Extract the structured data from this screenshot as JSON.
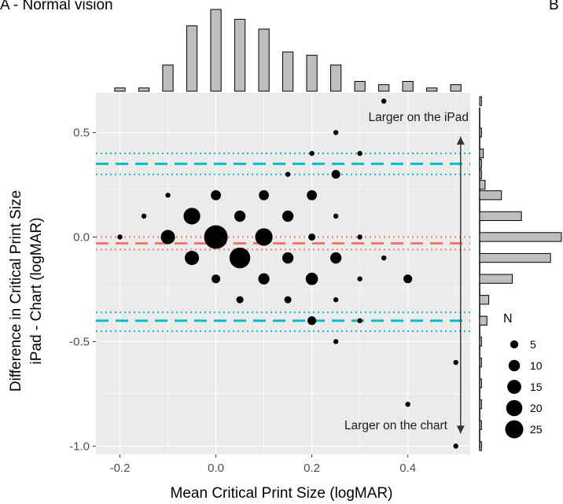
{
  "chart_data": {
    "type": "scatter",
    "panels": {
      "left_label": "A - Normal vision",
      "right_label": "B"
    },
    "xlabel": "Mean Critical Print Size (logMAR)",
    "ylabel": [
      "Difference in Critical Print Size",
      "iPad - Chart (logMAR)"
    ],
    "xlim": [
      -0.25,
      0.53
    ],
    "ylim": [
      -1.04,
      0.69
    ],
    "x_ticks": [
      {
        "value": -0.2,
        "label": "-0.2"
      },
      {
        "value": 0.0,
        "label": "0.0"
      },
      {
        "value": 0.2,
        "label": "0.2"
      },
      {
        "value": 0.4,
        "label": "0.4"
      }
    ],
    "y_ticks": [
      {
        "value": 0.5,
        "label": "0.5"
      },
      {
        "value": 0.0,
        "label": "0.0"
      },
      {
        "value": -0.5,
        "label": "-0.5"
      },
      {
        "value": -1.0,
        "label": "-1.0"
      }
    ],
    "grid": true,
    "points": [
      {
        "x": 0.35,
        "y": 0.65,
        "n": 1
      },
      {
        "x": 0.25,
        "y": 0.5,
        "n": 1
      },
      {
        "x": 0.2,
        "y": 0.4,
        "n": 1
      },
      {
        "x": 0.3,
        "y": 0.4,
        "n": 1
      },
      {
        "x": 0.15,
        "y": 0.3,
        "n": 1
      },
      {
        "x": 0.25,
        "y": 0.3,
        "n": 3
      },
      {
        "x": -0.1,
        "y": 0.2,
        "n": 1
      },
      {
        "x": 0.0,
        "y": 0.2,
        "n": 4
      },
      {
        "x": 0.1,
        "y": 0.2,
        "n": 4
      },
      {
        "x": 0.2,
        "y": 0.2,
        "n": 4
      },
      {
        "x": -0.15,
        "y": 0.1,
        "n": 1
      },
      {
        "x": -0.05,
        "y": 0.1,
        "n": 11
      },
      {
        "x": 0.05,
        "y": 0.1,
        "n": 5
      },
      {
        "x": 0.15,
        "y": 0.1,
        "n": 5
      },
      {
        "x": 0.25,
        "y": 0.1,
        "n": 1
      },
      {
        "x": -0.2,
        "y": 0.0,
        "n": 1
      },
      {
        "x": -0.1,
        "y": 0.0,
        "n": 8
      },
      {
        "x": 0.0,
        "y": 0.0,
        "n": 22
      },
      {
        "x": 0.1,
        "y": 0.0,
        "n": 12
      },
      {
        "x": 0.2,
        "y": 0.0,
        "n": 2
      },
      {
        "x": 0.3,
        "y": 0.0,
        "n": 1
      },
      {
        "x": -0.05,
        "y": -0.1,
        "n": 8
      },
      {
        "x": 0.05,
        "y": -0.1,
        "n": 17
      },
      {
        "x": 0.15,
        "y": -0.1,
        "n": 5
      },
      {
        "x": 0.25,
        "y": -0.1,
        "n": 5
      },
      {
        "x": 0.35,
        "y": -0.1,
        "n": 1
      },
      {
        "x": 0.0,
        "y": -0.2,
        "n": 3
      },
      {
        "x": 0.1,
        "y": -0.2,
        "n": 5
      },
      {
        "x": 0.2,
        "y": -0.2,
        "n": 6
      },
      {
        "x": 0.3,
        "y": -0.2,
        "n": 1
      },
      {
        "x": 0.4,
        "y": -0.2,
        "n": 3
      },
      {
        "x": 0.05,
        "y": -0.3,
        "n": 2
      },
      {
        "x": 0.15,
        "y": -0.3,
        "n": 2
      },
      {
        "x": 0.25,
        "y": -0.3,
        "n": 1
      },
      {
        "x": 0.2,
        "y": -0.4,
        "n": 3
      },
      {
        "x": 0.3,
        "y": -0.4,
        "n": 1
      },
      {
        "x": 0.25,
        "y": -0.5,
        "n": 1
      },
      {
        "x": 0.5,
        "y": -0.6,
        "n": 1
      },
      {
        "x": 0.4,
        "y": -0.8,
        "n": 1
      },
      {
        "x": 0.5,
        "y": -1.0,
        "n": 1
      }
    ],
    "reference_lines": [
      {
        "name": "mean",
        "y": -0.03,
        "style": "dashed",
        "color": "#F8766D"
      },
      {
        "name": "mean-ci-upper",
        "y": 0.0,
        "style": "dotted",
        "color": "#F8766D"
      },
      {
        "name": "mean-ci-lower",
        "y": -0.06,
        "style": "dotted",
        "color": "#F8766D"
      },
      {
        "name": "upper-loa",
        "y": 0.35,
        "style": "dashed",
        "color": "#00BFC4"
      },
      {
        "name": "upper-loa-ci-upper",
        "y": 0.4,
        "style": "dotted",
        "color": "#00BFC4"
      },
      {
        "name": "upper-loa-ci-lower",
        "y": 0.3,
        "style": "dotted",
        "color": "#00BFC4"
      },
      {
        "name": "lower-loa",
        "y": -0.4,
        "style": "dashed",
        "color": "#00BFC4"
      },
      {
        "name": "lower-loa-ci-upper",
        "y": -0.36,
        "style": "dotted",
        "color": "#00BFC4"
      },
      {
        "name": "lower-loa-ci-lower",
        "y": -0.45,
        "style": "dotted",
        "color": "#00BFC4"
      }
    ],
    "annotations": {
      "top": "Larger on the iPad",
      "bottom": "Larger on the chart",
      "arrow_x": 0.51,
      "arrow_from": 0.0,
      "arrow_to_top": 0.48,
      "arrow_to_bottom": -0.94
    },
    "x_histogram": {
      "bin_width": 0.025,
      "bins": [
        {
          "x": -0.2,
          "count": 1
        },
        {
          "x": -0.175,
          "count": 0
        },
        {
          "x": -0.15,
          "count": 1
        },
        {
          "x": -0.125,
          "count": 0
        },
        {
          "x": -0.1,
          "count": 8
        },
        {
          "x": -0.075,
          "count": 0
        },
        {
          "x": -0.05,
          "count": 20
        },
        {
          "x": -0.025,
          "count": 0
        },
        {
          "x": 0.0,
          "count": 25
        },
        {
          "x": 0.025,
          "count": 0
        },
        {
          "x": 0.05,
          "count": 22
        },
        {
          "x": 0.075,
          "count": 0
        },
        {
          "x": 0.1,
          "count": 19
        },
        {
          "x": 0.125,
          "count": 0
        },
        {
          "x": 0.15,
          "count": 12
        },
        {
          "x": 0.175,
          "count": 0
        },
        {
          "x": 0.2,
          "count": 11
        },
        {
          "x": 0.225,
          "count": 0
        },
        {
          "x": 0.25,
          "count": 8
        },
        {
          "x": 0.275,
          "count": 0
        },
        {
          "x": 0.3,
          "count": 3
        },
        {
          "x": 0.325,
          "count": 0
        },
        {
          "x": 0.35,
          "count": 2
        },
        {
          "x": 0.375,
          "count": 0
        },
        {
          "x": 0.4,
          "count": 3
        },
        {
          "x": 0.425,
          "count": 0
        },
        {
          "x": 0.45,
          "count": 1
        },
        {
          "x": 0.475,
          "count": 0
        },
        {
          "x": 0.5,
          "count": 2
        }
      ]
    },
    "y_histogram": {
      "bin_width": 0.05,
      "bins": [
        {
          "y": 0.65,
          "count": 1
        },
        {
          "y": 0.5,
          "count": 1
        },
        {
          "y": 0.4,
          "count": 2
        },
        {
          "y": 0.35,
          "count": 1
        },
        {
          "y": 0.3,
          "count": 1
        },
        {
          "y": 0.25,
          "count": 3
        },
        {
          "y": 0.2,
          "count": 12
        },
        {
          "y": 0.1,
          "count": 23
        },
        {
          "y": 0.0,
          "count": 45
        },
        {
          "y": -0.1,
          "count": 39
        },
        {
          "y": -0.2,
          "count": 18
        },
        {
          "y": -0.3,
          "count": 5
        },
        {
          "y": -0.4,
          "count": 4
        },
        {
          "y": -0.5,
          "count": 1
        },
        {
          "y": -0.6,
          "count": 1
        },
        {
          "y": -0.7,
          "count": 1
        },
        {
          "y": -0.8,
          "count": 1
        },
        {
          "y": -0.9,
          "count": 1
        },
        {
          "y": -1.0,
          "count": 1
        }
      ]
    },
    "legend": {
      "title": "N",
      "placement": "right",
      "entries": [
        {
          "n": 5,
          "label": "5"
        },
        {
          "n": 10,
          "label": "10"
        },
        {
          "n": 15,
          "label": "15"
        },
        {
          "n": 20,
          "label": "20"
        },
        {
          "n": 25,
          "label": "25"
        }
      ]
    },
    "colors": {
      "panel_bg": "#EBEBEB",
      "grid": "#FFFFFF",
      "point": "#000000",
      "hist_fill": "#BEBEBE",
      "hist_stroke": "#000000"
    }
  }
}
